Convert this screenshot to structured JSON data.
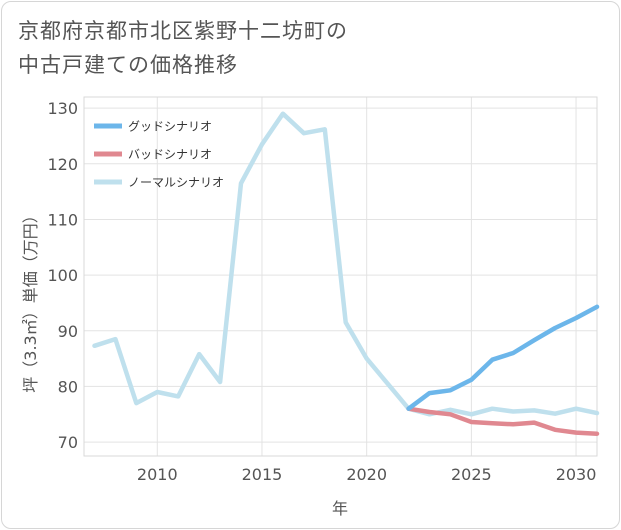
{
  "title_line1": "京都府京都市北区紫野十二坊町の",
  "title_line2": "中古戸建ての価格推移",
  "chart_data": {
    "type": "line",
    "title": "京都府京都市北区紫野十二坊町の中古戸建ての価格推移",
    "xlabel": "年",
    "ylabel": "坪（3.3㎡）単価（万円）",
    "xlim": [
      2006.5,
      2031
    ],
    "ylim": [
      67.5,
      132
    ],
    "xticks": [
      2010,
      2015,
      2020,
      2025,
      2030
    ],
    "yticks": [
      70,
      80,
      90,
      100,
      110,
      120,
      130
    ],
    "series": [
      {
        "name": "グッドシナリオ",
        "color": "#6cb6ea",
        "x": [
          2022,
          2023,
          2024,
          2025,
          2026,
          2027,
          2028,
          2029,
          2030,
          2031
        ],
        "y": [
          76,
          78.8,
          79.3,
          81.2,
          84.8,
          86,
          88.3,
          90.5,
          92.3,
          94.3
        ]
      },
      {
        "name": "バッドシナリオ",
        "color": "#e08890",
        "x": [
          2022,
          2023,
          2024,
          2025,
          2026,
          2027,
          2028,
          2029,
          2030,
          2031
        ],
        "y": [
          76,
          75.4,
          75,
          73.6,
          73.4,
          73.2,
          73.5,
          72.2,
          71.7,
          71.5
        ]
      },
      {
        "name": "ノーマルシナリオ",
        "color": "#bfe0ed",
        "x": [
          2007,
          2008,
          2009,
          2010,
          2011,
          2012,
          2013,
          2014,
          2015,
          2016,
          2017,
          2018,
          2019,
          2020,
          2021,
          2022,
          2023,
          2024,
          2025,
          2026,
          2027,
          2028,
          2029,
          2030,
          2031
        ],
        "y": [
          87.3,
          88.5,
          77,
          79,
          78.2,
          85.8,
          80.8,
          116.5,
          123.5,
          129,
          125.5,
          126.2,
          91.5,
          85,
          80.5,
          76,
          75,
          75.8,
          75,
          76,
          75.5,
          75.7,
          75.1,
          76,
          75.2
        ]
      }
    ],
    "legend_position": "top-left"
  }
}
